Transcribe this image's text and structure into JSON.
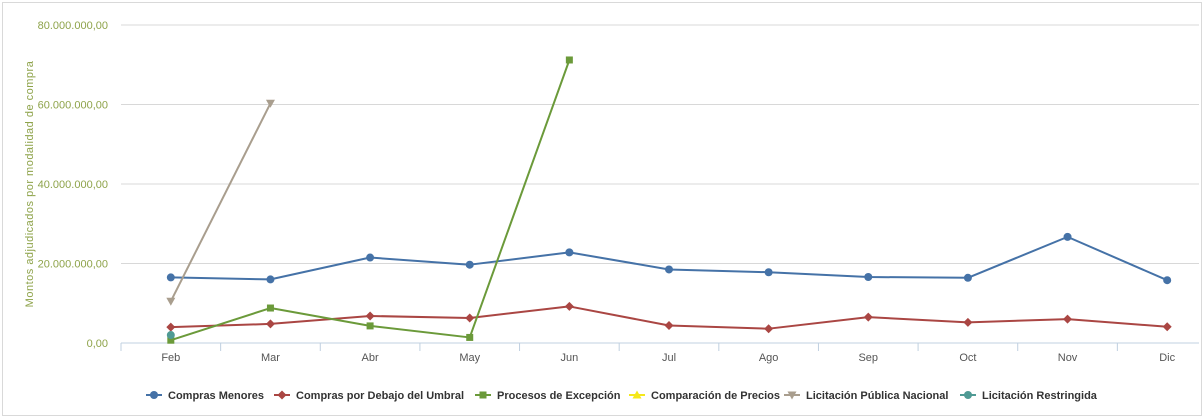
{
  "chart_data": {
    "type": "line",
    "ylabel": "Montos adjudicados por modalidad de compra",
    "xlabel": "",
    "ylim": [
      0,
      80000000
    ],
    "yticks": [
      0,
      20000000,
      40000000,
      60000000,
      80000000
    ],
    "ytick_labels": [
      "0,00",
      "20.000.000,00",
      "40.000.000,00",
      "60.000.000,00",
      "80.000.000,00"
    ],
    "grid": true,
    "legend_position": "bottom",
    "categories": [
      "Feb",
      "Mar",
      "Abr",
      "May",
      "Jun",
      "Jul",
      "Ago",
      "Sep",
      "Oct",
      "Nov",
      "Dic"
    ],
    "series": [
      {
        "name": "Compras Menores",
        "color": "#4572a7",
        "marker": "circle",
        "values": [
          16500000,
          16000000,
          21500000,
          19700000,
          22800000,
          18500000,
          17800000,
          16600000,
          16400000,
          26700000,
          15800000
        ]
      },
      {
        "name": "Compras por Debajo del Umbral",
        "color": "#aa4643",
        "marker": "diamond",
        "values": [
          4000000,
          4800000,
          6800000,
          6300000,
          9200000,
          4400000,
          3600000,
          6500000,
          5200000,
          6000000,
          4100000
        ]
      },
      {
        "name": "Procesos de Excepción",
        "color": "#6b9a3a",
        "marker": "square",
        "values": [
          700000,
          8800000,
          4300000,
          1400000,
          71200000,
          null,
          null,
          null,
          null,
          null,
          null
        ]
      },
      {
        "name": "Comparación de Precios",
        "color": "#f5e81a",
        "marker": "triangle",
        "values": [
          null,
          null,
          null,
          null,
          null,
          null,
          null,
          null,
          null,
          null,
          null
        ]
      },
      {
        "name": "Licitación Pública Nacional",
        "color": "#a99e8e",
        "marker": "triangle-down",
        "values": [
          10500000,
          60300000,
          null,
          null,
          null,
          null,
          null,
          null,
          null,
          null,
          null
        ]
      },
      {
        "name": "Licitación Restringida",
        "color": "#4f9a94",
        "marker": "circle",
        "values": [
          2000000,
          null,
          null,
          null,
          null,
          null,
          null,
          null,
          null,
          null,
          null
        ]
      }
    ]
  }
}
